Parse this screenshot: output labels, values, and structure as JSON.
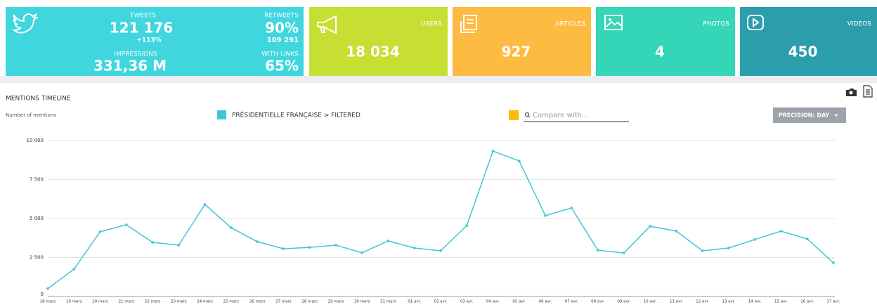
{
  "tiles": {
    "twitter": {
      "color": "#3fd6de",
      "tweets_label": "TWEETS",
      "tweets": "121 176",
      "tweets_change": "+113%",
      "impressions_label": "IMPRESSIONS",
      "impressions": "331,36 M",
      "retweets_label": "RETWEETS",
      "retweets": "90%",
      "retweets_count": "109 291",
      "links_label": "WITH LINKS",
      "links": "65%"
    },
    "stats": [
      {
        "label": "USERS",
        "value": "18 034",
        "color": "#c6df32"
      },
      {
        "label": "ARTICLES",
        "value": "927",
        "color": "#fdbb42"
      },
      {
        "label": "PHOTOS",
        "value": "4",
        "color": "#35d5b8"
      },
      {
        "label": "VIDEOS",
        "value": "450",
        "color": "#2c9eab"
      }
    ]
  },
  "compare_placeholder": "Compare with...",
  "compare_color": "#fbbb0f",
  "precision_button": "PRECISION: DAY",
  "chart_data": {
    "type": "line",
    "title": "MENTIONS TIMELINE",
    "y_label": "Number of mentions",
    "categories": [
      "18 mars",
      "19 mars",
      "20 mars",
      "21 mars",
      "22 mars",
      "23 mars",
      "24 mars",
      "25 mars",
      "26 mars",
      "27 mars",
      "28 mars",
      "29 mars",
      "30 mars",
      "31 mars",
      "01 avr.",
      "02 avr.",
      "03 avr.",
      "04 avr.",
      "05 avr.",
      "06 avr.",
      "07 avr.",
      "08 avr.",
      "09 avr.",
      "10 avr.",
      "11 avr.",
      "12 avr.",
      "13 avr.",
      "14 avr.",
      "15 avr.",
      "16 avr.",
      "17 avr."
    ],
    "series": [
      {
        "name": "PRÉSIDENTIELLE FRANÇAISE > FILTERED",
        "color": "#3ec8d5",
        "values": [
          500,
          1750,
          4150,
          4600,
          3470,
          3290,
          5900,
          4410,
          3510,
          3060,
          3150,
          3290,
          2800,
          3560,
          3110,
          2930,
          4550,
          9320,
          8690,
          5180,
          5680,
          2970,
          2790,
          4500,
          4190,
          2930,
          3110,
          3650,
          4190,
          3690,
          2160
        ]
      }
    ],
    "ylim": [
      0,
      10000
    ],
    "yticks": [
      0,
      {
        "value": 2500,
        "label": "2 500"
      },
      {
        "value": 5000,
        "label": "5 000"
      },
      {
        "value": 7500,
        "label": "7 500"
      },
      {
        "value": 10000,
        "label": "10 000"
      }
    ],
    "grid": true
  }
}
